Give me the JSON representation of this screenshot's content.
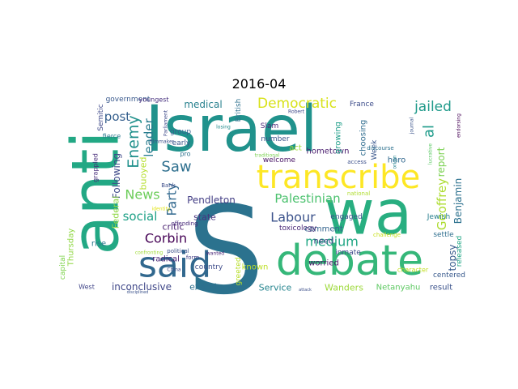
{
  "chart_data": {
    "type": "wordcloud",
    "title": "2016-04",
    "background": "#ffffff",
    "colormap": "viridis",
    "words": [
      {
        "text": "S",
        "color": "#2b728e"
      },
      {
        "text": "Israel",
        "color": "#20928c"
      },
      {
        "text": "anti",
        "color": "#22a884"
      },
      {
        "text": "wa",
        "color": "#28ae80"
      },
      {
        "text": "debate",
        "color": "#35b779"
      },
      {
        "text": "said",
        "color": "#31688e"
      },
      {
        "text": "transcribe",
        "color": "#fde725"
      },
      {
        "text": "Democratic",
        "color": "#d8e219"
      },
      {
        "text": "jailed",
        "color": "#1f9a8a"
      },
      {
        "text": "Palestinian",
        "color": "#4ac16d"
      },
      {
        "text": "Enemy",
        "color": "#21918c"
      },
      {
        "text": "Saw",
        "color": "#2e6f8e"
      },
      {
        "text": "News",
        "color": "#6ccd5a"
      },
      {
        "text": "Labour",
        "color": "#3b528b"
      },
      {
        "text": "Corbin",
        "color": "#440154"
      },
      {
        "text": "medium",
        "color": "#22a785"
      },
      {
        "text": "social",
        "color": "#1fa187"
      },
      {
        "text": "post",
        "color": "#355f8d"
      },
      {
        "text": "leader",
        "color": "#287c8e"
      },
      {
        "text": "Party",
        "color": "#31688e"
      },
      {
        "text": "al",
        "color": "#1e9b8a"
      },
      {
        "text": "Geoffrey",
        "color": "#addc30"
      },
      {
        "text": "report",
        "color": "#7ad151"
      },
      {
        "text": "topsy",
        "color": "#375a8c"
      },
      {
        "text": "Benjamin",
        "color": "#2c718e"
      },
      {
        "text": "Pendleton",
        "color": "#433e85"
      },
      {
        "text": "medical",
        "color": "#27808e"
      },
      {
        "text": "Following",
        "color": "#3e4a89"
      },
      {
        "text": "buoyed",
        "color": "#b5de2b"
      },
      {
        "text": "critic",
        "color": "#481f70"
      },
      {
        "text": "state",
        "color": "#46337e"
      },
      {
        "text": "Federal",
        "color": "#8fd744"
      },
      {
        "text": "inconclusive",
        "color": "#3f4788"
      },
      {
        "text": "examiner",
        "color": "#2d708e"
      },
      {
        "text": "Service",
        "color": "#25848e"
      },
      {
        "text": "Wanders",
        "color": "#9dd93b"
      },
      {
        "text": "Netanyahu",
        "color": "#5ec962"
      },
      {
        "text": "result",
        "color": "#3b528b"
      },
      {
        "text": "government",
        "color": "#38588c"
      },
      {
        "text": "Semitic",
        "color": "#3e4989"
      },
      {
        "text": "fierce",
        "color": "#2a788e"
      },
      {
        "text": "grappled",
        "color": "#472c7a"
      },
      {
        "text": "youngest",
        "color": "#46307e"
      },
      {
        "text": "group",
        "color": "#355f8d"
      },
      {
        "text": "early",
        "color": "#39568c"
      },
      {
        "text": "pro",
        "color": "#2c728e"
      },
      {
        "text": "British",
        "color": "#2d708e"
      },
      {
        "text": "Slam",
        "color": "#482576"
      },
      {
        "text": "number",
        "color": "#3a548c"
      },
      {
        "text": "act",
        "color": "#a2da37"
      },
      {
        "text": "welcome",
        "color": "#471365"
      },
      {
        "text": "hometown",
        "color": "#481b6d"
      },
      {
        "text": "comment",
        "color": "#33638d"
      },
      {
        "text": "need",
        "color": "#414487"
      },
      {
        "text": "inmate",
        "color": "#3e4a89"
      },
      {
        "text": "toxicology",
        "color": "#482878"
      },
      {
        "text": "growing",
        "color": "#1f9e89"
      },
      {
        "text": "choosing",
        "color": "#2f6c8e"
      },
      {
        "text": "France",
        "color": "#3d4d8a"
      },
      {
        "text": "Week",
        "color": "#39568c"
      },
      {
        "text": "hero",
        "color": "#31688e"
      },
      {
        "text": "engaged",
        "color": "#3b528b"
      },
      {
        "text": "worried",
        "color": "#481467"
      },
      {
        "text": "known",
        "color": "#bddf26"
      },
      {
        "text": "greeted",
        "color": "#b8de29"
      },
      {
        "text": "country",
        "color": "#3e4c8a"
      },
      {
        "text": "radical",
        "color": "#482475"
      },
      {
        "text": "Thursday",
        "color": "#90d743"
      },
      {
        "text": "capital",
        "color": "#7fd34e"
      },
      {
        "text": "rise",
        "color": "#2a778e"
      },
      {
        "text": "West",
        "color": "#404588"
      },
      {
        "text": "Jewish",
        "color": "#277f8e"
      },
      {
        "text": "settle",
        "color": "#2e6e8e"
      },
      {
        "text": "released",
        "color": "#21a685"
      },
      {
        "text": "centered",
        "color": "#38598c"
      },
      {
        "text": "character",
        "color": "#c2df23"
      },
      {
        "text": "discourse",
        "color": "#2d718e"
      },
      {
        "text": "access",
        "color": "#3c508b"
      },
      {
        "text": "traditional",
        "color": "#7ad151"
      },
      {
        "text": "Bank",
        "color": "#3d4e8a"
      },
      {
        "text": "offending",
        "color": "#472a7a"
      },
      {
        "text": "political",
        "color": "#3b518b"
      },
      {
        "text": "form",
        "color": "#433d84"
      },
      {
        "text": "national",
        "color": "#b0dd2f"
      },
      {
        "text": "challenge",
        "color": "#c8e020"
      },
      {
        "text": "origin",
        "color": "#26828e"
      },
      {
        "text": "journal",
        "color": "#3a538b"
      },
      {
        "text": "lucrative",
        "color": "#5ac864"
      },
      {
        "text": "endorsing",
        "color": "#440154"
      },
      {
        "text": "filmmaker",
        "color": "#3b518b"
      },
      {
        "text": "confronting",
        "color": "#a0da39"
      },
      {
        "text": "identity",
        "color": "#e2e418"
      },
      {
        "text": "China",
        "color": "#3e4989"
      },
      {
        "text": "losing",
        "color": "#228c8d"
      },
      {
        "text": "Robert",
        "color": "#3f4889"
      },
      {
        "text": "Parliament",
        "color": "#3e4a89"
      },
      {
        "text": "wanted",
        "color": "#482576"
      },
      {
        "text": "attack",
        "color": "#3c4f8a"
      },
      {
        "text": "disciplined",
        "color": "#3b528b"
      }
    ]
  }
}
